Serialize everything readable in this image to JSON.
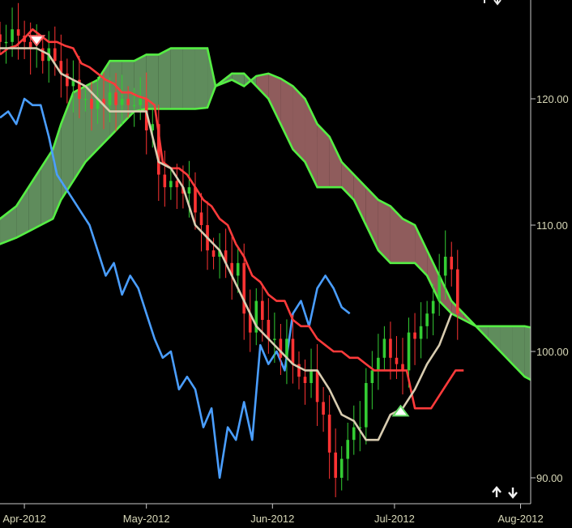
{
  "chart_data": {
    "type": "line",
    "title": "",
    "xlabel": "",
    "ylabel": "",
    "ylim": [
      88,
      127
    ],
    "grid": false,
    "legend": "none",
    "x_ticks": [
      {
        "label": "Apr-2012",
        "x": 3
      },
      {
        "label": "May-2012",
        "x": 33
      },
      {
        "label": "Jun-2012",
        "x": 64
      },
      {
        "label": "Jul-2012",
        "x": 94
      },
      {
        "label": "Aug-2012",
        "x": 125
      }
    ],
    "y_ticks": [
      {
        "label": "90.00",
        "y": 90
      },
      {
        "label": "100.00",
        "y": 100
      },
      {
        "label": "110.00",
        "y": 110
      },
      {
        "label": "120.00",
        "y": 120
      }
    ],
    "colors": {
      "background": "#000000",
      "axis": "#c8c8c8",
      "tick_text": "#d8d8b8",
      "candle_up": "#33cc33",
      "candle_down": "#ff3333",
      "tenkan": "#ff3b3b",
      "kijun": "#d8ccb0",
      "chikou": "#4a9eff",
      "cloud_edge": "#55ee44",
      "cloud_bull": "#5f8c5c",
      "cloud_bear": "#8f5c5c",
      "marker_sell": "#ff6666",
      "marker_buy": "#66dd66"
    },
    "icons": {
      "top_arrows": "up-down-arrows-icon",
      "bottom_arrows": "up-down-arrows-icon"
    },
    "series": [
      {
        "key": "cloud_upper",
        "x": [
          -4,
          0,
          4,
          7,
          10,
          13,
          15,
          18,
          21,
          24,
          27,
          30,
          33,
          36,
          39,
          42,
          45,
          48,
          51,
          53,
          57,
          60,
          63,
          66,
          69,
          72,
          75,
          78,
          81,
          84,
          87,
          90,
          93,
          96,
          99,
          102,
          105,
          108,
          111,
          114,
          117,
          120,
          123,
          126,
          129,
          132,
          135,
          138,
          141
        ],
        "values": [
          109.5,
          110.5,
          111.5,
          113,
          114.5,
          116,
          118,
          120.5,
          121,
          121.5,
          123,
          123,
          123,
          123.5,
          123.5,
          124,
          124,
          124,
          124,
          121,
          122,
          122,
          121,
          120,
          118,
          116,
          115,
          113,
          113,
          113,
          112,
          110,
          108,
          107,
          107,
          107,
          106,
          104,
          103,
          102.5,
          102,
          102,
          102,
          102,
          102,
          101.8,
          101.5,
          101,
          100.5
        ]
      },
      {
        "key": "cloud_lower",
        "x": [
          -4,
          0,
          4,
          7,
          10,
          13,
          15,
          18,
          21,
          24,
          27,
          30,
          33,
          36,
          39,
          42,
          45,
          48,
          51,
          53,
          57,
          60,
          63,
          66,
          69,
          72,
          75,
          78,
          81,
          84,
          87,
          90,
          93,
          96,
          99,
          102,
          105,
          108,
          111,
          114,
          117,
          120,
          123,
          126,
          129,
          132,
          135,
          138,
          141
        ],
        "values": [
          108,
          108.5,
          109,
          109.5,
          110,
          110.5,
          112,
          113.5,
          115,
          116,
          117,
          118,
          119,
          119.2,
          119.2,
          119.2,
          119.2,
          119.2,
          119.3,
          121,
          121.5,
          121,
          121.8,
          122,
          121.6,
          121,
          120,
          118,
          117,
          115,
          114,
          113,
          112,
          111.5,
          110.5,
          110,
          108,
          106,
          104,
          103,
          102,
          101,
          100,
          99,
          98,
          97.5,
          96.8,
          96.8,
          97.5
        ]
      },
      {
        "key": "tenkan",
        "x": [
          0,
          2,
          4,
          6,
          8,
          10,
          12,
          14,
          16,
          18,
          20,
          22,
          24,
          26,
          28,
          30,
          32,
          34,
          36,
          38,
          40,
          42,
          44,
          46,
          48,
          50,
          52,
          54,
          56,
          58,
          60,
          62,
          64,
          66,
          68,
          70,
          72,
          74,
          76,
          78,
          80,
          82,
          84,
          86,
          88,
          90,
          92,
          94,
          96,
          98,
          100,
          102,
          104,
          106,
          108,
          110,
          112,
          114
        ],
        "values": [
          123.5,
          124,
          124.2,
          124.8,
          125.5,
          125,
          124.5,
          124.5,
          124.2,
          124,
          122.8,
          122.5,
          122,
          121.5,
          121.2,
          120.5,
          120.5,
          120.2,
          120,
          119.5,
          115,
          114.5,
          114.5,
          114,
          113,
          112,
          111.5,
          110.5,
          110,
          108.5,
          107.5,
          106,
          105.5,
          104.5,
          104,
          104,
          102.5,
          102,
          102,
          101,
          100.5,
          100,
          100,
          99.5,
          99.5,
          99,
          98.5,
          98.5,
          98.5,
          98.5,
          98.5,
          95.5,
          95.5,
          95.5,
          96.5,
          97.5,
          98.5,
          98.5
        ]
      },
      {
        "key": "kijun",
        "x": [
          0,
          3,
          6,
          9,
          12,
          15,
          18,
          21,
          24,
          27,
          30,
          33,
          36,
          39,
          42,
          45,
          48,
          51,
          54,
          57,
          60,
          63,
          66,
          69,
          72,
          75,
          78,
          81,
          84,
          87,
          90,
          93,
          96,
          99,
          102,
          105,
          108,
          111
        ],
        "values": [
          124,
          124,
          124,
          124,
          123.5,
          122,
          121.5,
          121,
          120,
          119,
          119,
          119,
          119,
          115,
          114.5,
          113,
          110,
          109,
          108,
          106,
          104,
          102,
          101,
          100,
          99,
          98.5,
          98.5,
          97,
          95,
          94.5,
          93,
          93,
          95,
          95.5,
          97,
          99,
          100.5,
          103
        ]
      },
      {
        "key": "chikou",
        "x": [
          0,
          2,
          4,
          6,
          8,
          10,
          12,
          14,
          16,
          18,
          20,
          22,
          24,
          26,
          28,
          30,
          32,
          34,
          36,
          38,
          40,
          42,
          44,
          46,
          48,
          50,
          52,
          54,
          56,
          58,
          60,
          62,
          64,
          66,
          68,
          70,
          72,
          74,
          76,
          78,
          80,
          82,
          84,
          86
        ],
        "values": [
          118.5,
          119,
          118,
          120,
          119.5,
          119.5,
          117,
          114,
          113,
          112,
          111,
          110,
          108,
          106,
          107,
          104.5,
          106,
          105,
          103,
          101,
          99.5,
          100,
          97,
          98,
          97,
          94,
          95.5,
          90,
          94,
          93,
          96,
          93,
          100.5,
          99,
          100,
          98.5,
          103,
          104,
          102,
          105,
          106,
          105,
          103.5,
          103
        ]
      },
      {
        "key": "candles",
        "x": [
          0,
          1.5,
          3,
          4.5,
          6,
          7.5,
          9,
          10.5,
          12,
          13.5,
          15,
          16.5,
          18,
          19.5,
          21,
          22.5,
          24,
          25.5,
          27,
          28.5,
          30,
          31.5,
          33,
          34.5,
          36,
          37.5,
          39,
          40.5,
          42,
          43.5,
          45,
          46.5,
          48,
          49.5,
          51,
          52.5,
          54,
          55.5,
          57,
          58.5,
          60,
          61.5,
          63,
          64.5,
          66,
          67.5,
          69,
          70.5,
          72,
          73.5,
          75,
          76.5,
          78,
          79.5,
          81,
          82.5,
          84,
          85.5,
          87,
          88.5,
          90,
          91.5,
          93,
          94.5,
          96,
          97.5,
          99,
          100.5,
          102,
          103.5,
          105,
          106.5,
          108,
          109.5,
          111,
          112.5
        ],
        "values": [
          124.5,
          124.5,
          125.5,
          125,
          124.5,
          124,
          124,
          123,
          124,
          123,
          122,
          121,
          121.5,
          120,
          120,
          119.2,
          120,
          119.5,
          120.5,
          119.5,
          120,
          119.5,
          119.5,
          120,
          117.5,
          118,
          114,
          113,
          113.5,
          113,
          112.5,
          113,
          111,
          110,
          108,
          107.5,
          108,
          107,
          106,
          107,
          103,
          101.5,
          104,
          102.5,
          101,
          101,
          99.5,
          101,
          99,
          98,
          97.5,
          98.5,
          96,
          95,
          92,
          90,
          91.5,
          93,
          94,
          94,
          97.5,
          98.5,
          99.5,
          101,
          99.5,
          99,
          98.5,
          101.5,
          101,
          102,
          103,
          104,
          106,
          107.5,
          106.5,
          103
        ]
      }
    ],
    "markers": [
      {
        "type": "sell",
        "x": 9,
        "y": 124.6
      },
      {
        "type": "buy",
        "x": 98.5,
        "y": 95.3
      }
    ]
  }
}
